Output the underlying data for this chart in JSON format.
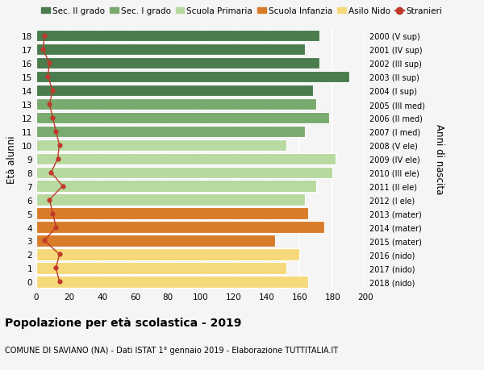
{
  "ages": [
    18,
    17,
    16,
    15,
    14,
    13,
    12,
    11,
    10,
    9,
    8,
    7,
    6,
    5,
    4,
    3,
    2,
    1,
    0
  ],
  "right_labels": [
    "2000 (V sup)",
    "2001 (IV sup)",
    "2002 (III sup)",
    "2003 (II sup)",
    "2004 (I sup)",
    "2005 (III med)",
    "2006 (II med)",
    "2007 (I med)",
    "2008 (V ele)",
    "2009 (IV ele)",
    "2010 (III ele)",
    "2011 (II ele)",
    "2012 (I ele)",
    "2013 (mater)",
    "2014 (mater)",
    "2015 (mater)",
    "2016 (nido)",
    "2017 (nido)",
    "2018 (nido)"
  ],
  "bar_values": [
    172,
    163,
    172,
    190,
    168,
    170,
    178,
    163,
    152,
    182,
    180,
    170,
    163,
    165,
    175,
    145,
    160,
    152,
    165
  ],
  "bar_colors": [
    "#4a7c4e",
    "#4a7c4e",
    "#4a7c4e",
    "#4a7c4e",
    "#4a7c4e",
    "#7aab6e",
    "#7aab6e",
    "#7aab6e",
    "#b8d9a0",
    "#b8d9a0",
    "#b8d9a0",
    "#b8d9a0",
    "#b8d9a0",
    "#d97c2a",
    "#d97c2a",
    "#d97c2a",
    "#f5d97a",
    "#f5d97a",
    "#f5d97a"
  ],
  "stranieri_values": [
    5,
    4,
    8,
    7,
    10,
    8,
    10,
    12,
    14,
    13,
    9,
    16,
    8,
    10,
    12,
    5,
    14,
    12,
    14
  ],
  "title": "Popolazione per età scolastica - 2019",
  "subtitle": "COMUNE DI SAVIANO (NA) - Dati ISTAT 1° gennaio 2019 - Elaborazione TUTTITALIA.IT",
  "ylabel": "Età alunni",
  "right_ylabel": "Anni di nascita",
  "xlim": [
    0,
    200
  ],
  "xticks": [
    0,
    20,
    40,
    60,
    80,
    100,
    120,
    140,
    160,
    180,
    200
  ],
  "legend_labels": [
    "Sec. II grado",
    "Sec. I grado",
    "Scuola Primaria",
    "Scuola Infanzia",
    "Asilo Nido",
    "Stranieri"
  ],
  "legend_colors": [
    "#4a7c4e",
    "#7aab6e",
    "#b8d9a0",
    "#d97c2a",
    "#f5d97a",
    "#c0392b"
  ],
  "stranieri_color": "#c0392b",
  "bg_color": "#f5f5f5",
  "grid_color": "#ffffff",
  "bar_height": 0.85
}
